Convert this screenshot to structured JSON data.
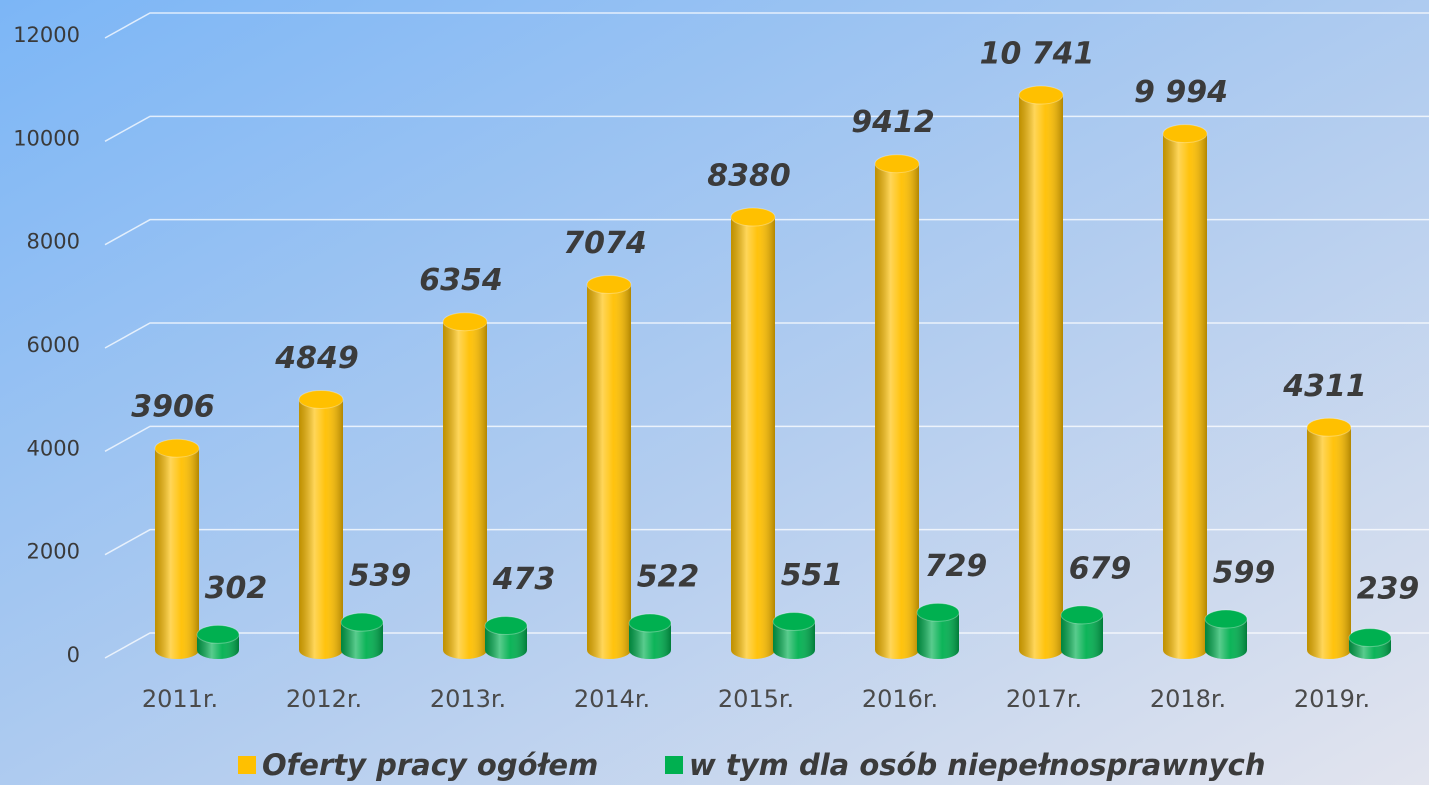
{
  "chart_data": {
    "type": "bar3d",
    "categories": [
      "2011r.",
      "2012r.",
      "2013r.",
      "2014r.",
      "2015r.",
      "2016r.",
      "2017r.",
      "2018r.",
      "2019r."
    ],
    "series": [
      {
        "name": "Oferty pracy ogółem",
        "color": "#ffc000",
        "values": [
          3906,
          4849,
          6354,
          7074,
          8380,
          9412,
          10741,
          9994,
          4311
        ],
        "value_labels": [
          "3906",
          "4849",
          "6354",
          "7074",
          "8380",
          "9412",
          "10 741",
          "9 994",
          "4311"
        ]
      },
      {
        "name": "w tym dla osób niepełnosprawnych",
        "color": "#00b050",
        "values": [
          302,
          539,
          473,
          522,
          551,
          729,
          679,
          599,
          239
        ]
      }
    ],
    "ylim": [
      0,
      12000
    ],
    "yticks": [
      0,
      2000,
      4000,
      6000,
      8000,
      10000,
      12000
    ],
    "grid": true
  }
}
